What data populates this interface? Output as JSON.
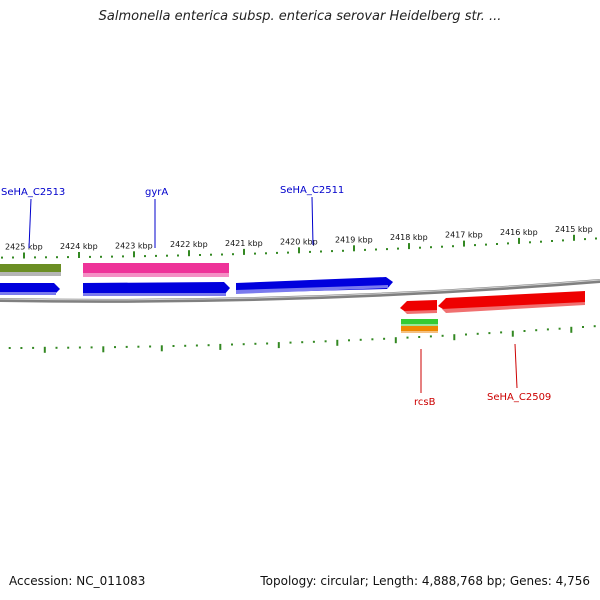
{
  "title": "Salmonella enterica subsp. enterica serovar Heidelberg str. ...",
  "accession": "Accession: NC_011083",
  "topology": "Topology: circular; Length: 4,888,768 bp; Genes: 4,756",
  "colors": {
    "forward_gene": "#0000dd",
    "reverse_gene": "#ee0000",
    "pink_feature": "#ee3399",
    "olive_feature": "#6b8e23",
    "green_feature": "#33cc33",
    "orange_feature": "#ee8800",
    "tick": "#338822",
    "backbone": "#808080",
    "forward_label": "#0000cc",
    "reverse_label": "#cc0000"
  },
  "ticks": [
    {
      "label": "2425 kbp"
    },
    {
      "label": "2424 kbp"
    },
    {
      "label": "2423 kbp"
    },
    {
      "label": "2422 kbp"
    },
    {
      "label": "2421 kbp"
    },
    {
      "label": "2420 kbp"
    },
    {
      "label": "2419 kbp"
    },
    {
      "label": "2418 kbp"
    },
    {
      "label": "2417 kbp"
    },
    {
      "label": "2416 kbp"
    },
    {
      "label": "2415 kbp"
    }
  ],
  "gene_labels": {
    "c2513": "SeHA_C2513",
    "gyra": "gyrA",
    "c2511": "SeHA_C2511",
    "rcsb": "rcsB",
    "c2509": "SeHA_C2509"
  }
}
